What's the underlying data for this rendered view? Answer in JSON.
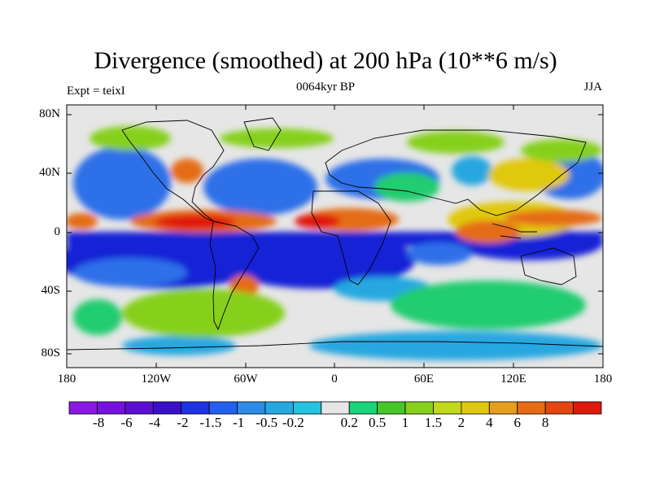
{
  "title": "Divergence (smoothed) at 200 hPa (10**6 m/s)",
  "left_label": "Expt = teixI",
  "center_label": "0064kyr BP",
  "right_label": "JJA",
  "y_ticks": [
    "80N",
    "40N",
    "0",
    "40S",
    "80S"
  ],
  "x_ticks": [
    "180",
    "120W",
    "60W",
    "0",
    "60E",
    "120E",
    "180"
  ],
  "colorbar": {
    "labels": [
      "-8",
      "-6",
      "-4",
      "-2",
      "-1.5",
      "-1",
      "-0.5",
      "-0.2",
      "0.2",
      "0.5",
      "1",
      "1.5",
      "2",
      "4",
      "6",
      "8"
    ],
    "colors": [
      "#8b17e6",
      "#7512e0",
      "#5c0ed6",
      "#3a0fcc",
      "#1e32e6",
      "#2460f0",
      "#2c8ce8",
      "#27a7e0",
      "#26c2e0",
      "#e6e6e6",
      "#18d47a",
      "#44c82a",
      "#86d01e",
      "#c3d818",
      "#e0c80f",
      "#e89d1c",
      "#e56c14",
      "#e44511",
      "#e0190d"
    ]
  },
  "map_colors": {
    "neutral": "#e6e6e6",
    "strong_neg": "#1822d6",
    "neg": "#2d6fe8",
    "weak_neg": "#27a7e0",
    "weak_pos": "#22cc70",
    "pos": "#86d01e",
    "strong_pos": "#e0c80f",
    "very_pos": "#e56c14",
    "max_pos": "#e0190d",
    "coast": "#000000"
  }
}
